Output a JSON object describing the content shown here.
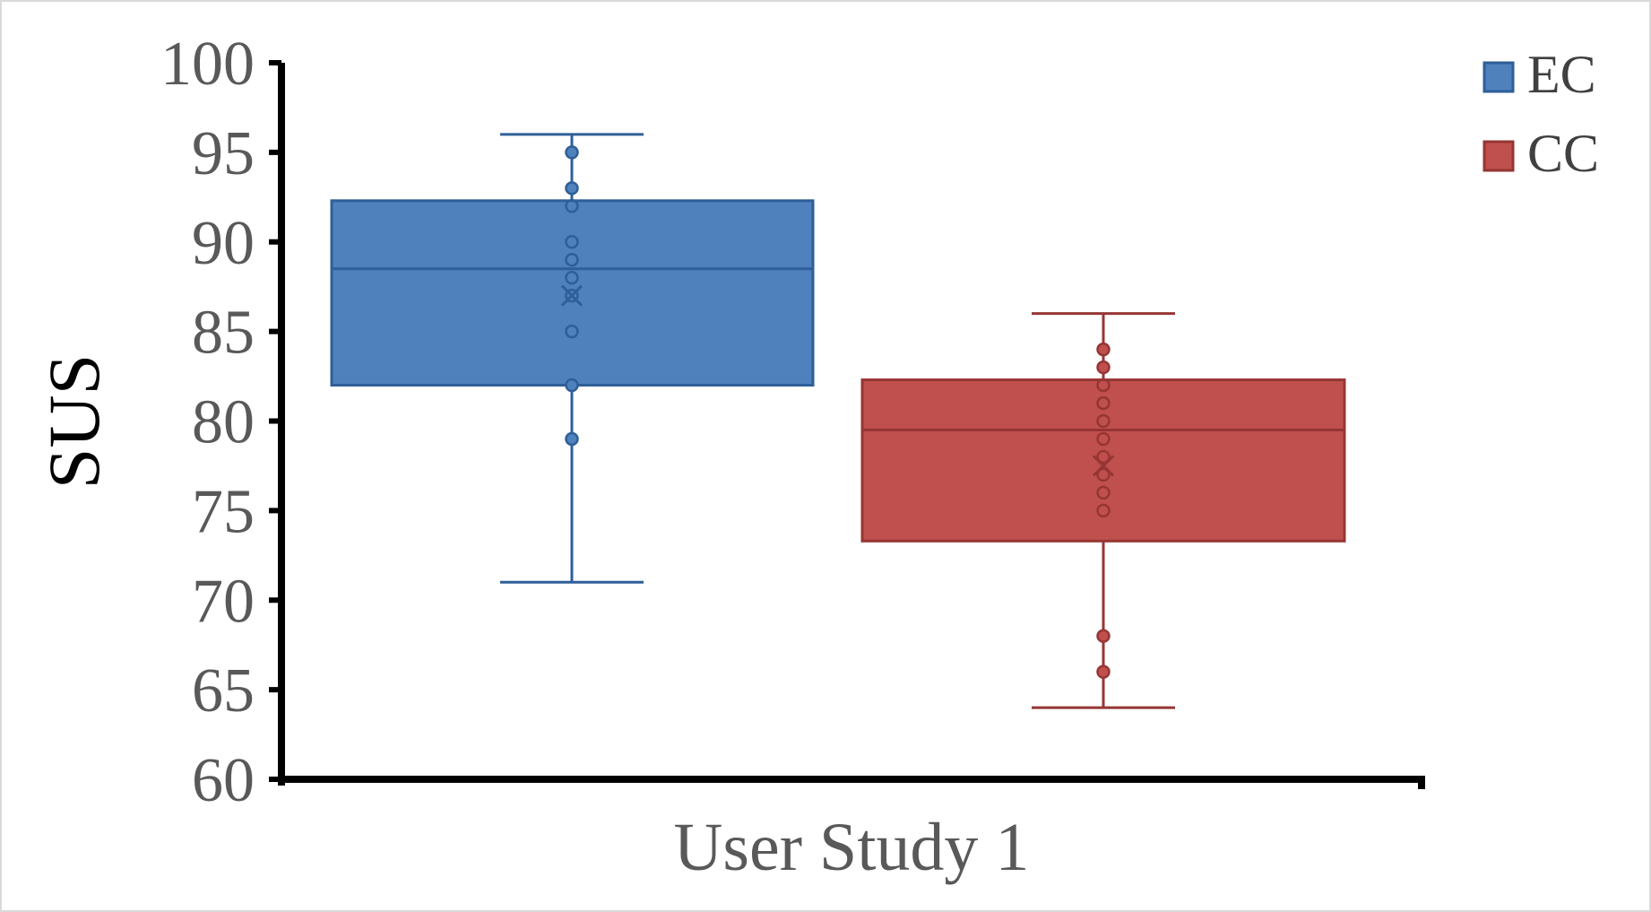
{
  "chart_data": {
    "type": "box",
    "ylabel": "SUS",
    "ylim": [
      60,
      100
    ],
    "yticks": [
      60,
      65,
      70,
      75,
      80,
      85,
      90,
      95,
      100
    ],
    "category": "User Study 1",
    "legend_position": "top-right",
    "series": [
      {
        "name": "EC",
        "color": "#4f81bd",
        "edge_color": "#2f5f98",
        "whisker_low": 71,
        "q1": 82,
        "median": 88.5,
        "q3": 92.3,
        "whisker_high": 96,
        "mean": 87,
        "points": [
          95,
          93,
          92,
          90,
          89,
          88,
          87,
          85,
          82,
          79
        ]
      },
      {
        "name": "CC",
        "color": "#c0504d",
        "edge_color": "#963634",
        "whisker_low": 64,
        "q1": 73.3,
        "median": 79.5,
        "q3": 82.3,
        "whisker_high": 86,
        "mean": 77.5,
        "points": [
          84,
          83,
          82,
          81,
          80,
          79,
          78,
          77,
          76,
          75,
          68,
          66
        ]
      }
    ]
  }
}
